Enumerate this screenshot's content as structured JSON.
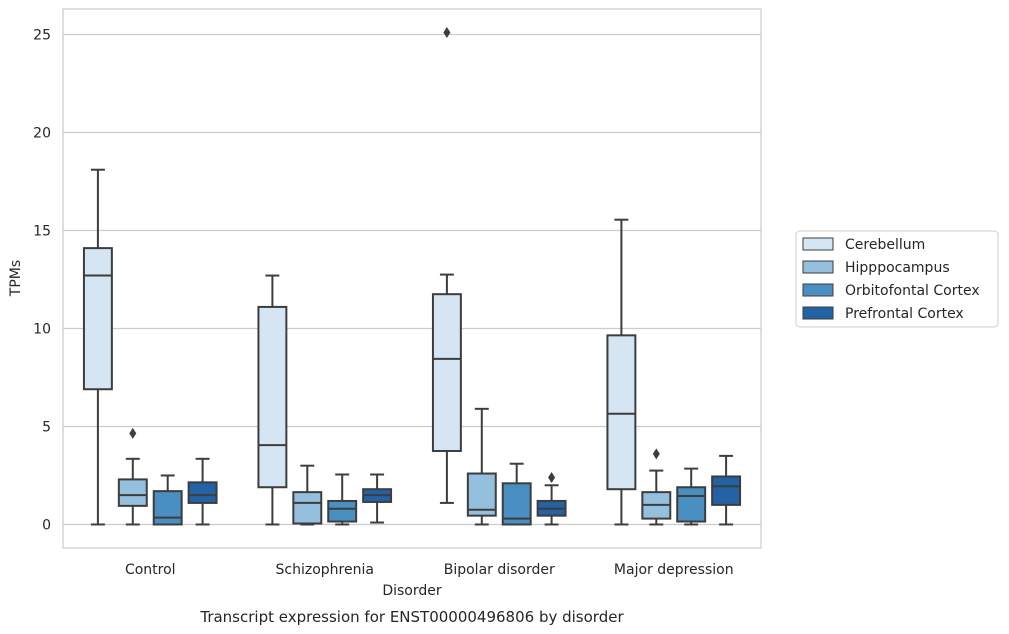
{
  "chart_data": {
    "type": "box",
    "caption": "Transcript expression for ENST00000496806 by disorder",
    "xlabel": "Disorder",
    "ylabel": "TPMs",
    "ylim": [
      -1.2,
      26.3
    ],
    "yticks": [
      0,
      5,
      10,
      15,
      20,
      25
    ],
    "grid": "horizontal",
    "legend_position": "right",
    "categories": [
      "Control",
      "Schizophrenia",
      "Bipolar disorder",
      "Major depression"
    ],
    "series": [
      {
        "name": "Cerebellum",
        "color": "#d6e5f3",
        "boxes": [
          {
            "whislo": 0.0,
            "q1": 6.9,
            "med": 12.7,
            "q3": 14.1,
            "whishi": 18.1,
            "fliers": []
          },
          {
            "whislo": 0.0,
            "q1": 1.9,
            "med": 4.05,
            "q3": 11.1,
            "whishi": 12.7,
            "fliers": []
          },
          {
            "whislo": 1.1,
            "q1": 3.75,
            "med": 8.45,
            "q3": 11.75,
            "whishi": 12.75,
            "fliers": [
              25.1
            ]
          },
          {
            "whislo": 0.0,
            "q1": 1.8,
            "med": 5.65,
            "q3": 9.65,
            "whishi": 15.55,
            "fliers": []
          }
        ]
      },
      {
        "name": "Hipppocampus",
        "color": "#95c0dd",
        "boxes": [
          {
            "whislo": 0.0,
            "q1": 0.95,
            "med": 1.5,
            "q3": 2.3,
            "whishi": 3.35,
            "fliers": [
              4.65
            ]
          },
          {
            "whislo": 0.0,
            "q1": 0.05,
            "med": 1.1,
            "q3": 1.65,
            "whishi": 3.0,
            "fliers": []
          },
          {
            "whislo": 0.0,
            "q1": 0.45,
            "med": 0.75,
            "q3": 2.6,
            "whishi": 5.9,
            "fliers": []
          },
          {
            "whislo": 0.0,
            "q1": 0.3,
            "med": 1.0,
            "q3": 1.65,
            "whishi": 2.75,
            "fliers": [
              3.6
            ]
          }
        ]
      },
      {
        "name": "Orbitofontal Cortex",
        "color": "#4a8fc2",
        "boxes": [
          {
            "whislo": 0.0,
            "q1": 0.0,
            "med": 0.35,
            "q3": 1.7,
            "whishi": 2.5,
            "fliers": []
          },
          {
            "whislo": 0.0,
            "q1": 0.15,
            "med": 0.8,
            "q3": 1.2,
            "whishi": 2.55,
            "fliers": []
          },
          {
            "whislo": 0.0,
            "q1": 0.0,
            "med": 0.3,
            "q3": 2.1,
            "whishi": 3.1,
            "fliers": []
          },
          {
            "whislo": 0.0,
            "q1": 0.15,
            "med": 1.45,
            "q3": 1.9,
            "whishi": 2.85,
            "fliers": []
          }
        ]
      },
      {
        "name": "Prefrontal Cortex",
        "color": "#2262a5",
        "boxes": [
          {
            "whislo": 0.0,
            "q1": 1.1,
            "med": 1.5,
            "q3": 2.15,
            "whishi": 3.35,
            "fliers": []
          },
          {
            "whislo": 0.1,
            "q1": 1.15,
            "med": 1.5,
            "q3": 1.8,
            "whishi": 2.55,
            "fliers": []
          },
          {
            "whislo": 0.0,
            "q1": 0.45,
            "med": 0.8,
            "q3": 1.2,
            "whishi": 2.0,
            "fliers": [
              2.4
            ]
          },
          {
            "whislo": 0.0,
            "q1": 1.0,
            "med": 1.95,
            "q3": 2.45,
            "whishi": 3.5,
            "fliers": []
          }
        ]
      }
    ]
  }
}
